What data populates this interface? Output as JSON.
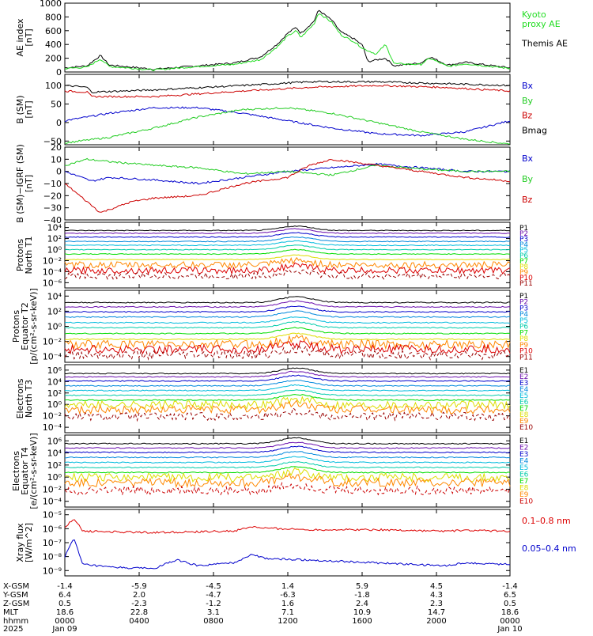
{
  "chart_data": [
    {
      "type": "line",
      "ylabel": "AE index\n[nT]",
      "yticks": [
        "1000",
        "800",
        "600",
        "400",
        "200",
        "0"
      ],
      "ylim": [
        0,
        1000
      ],
      "legend": [
        {
          "text": "Kyoto\nproxy AE",
          "color": "#22dd22"
        },
        {
          "text": "Themis AE",
          "color": "#000000"
        }
      ],
      "series": [
        {
          "name": "Themis AE",
          "color": "#000000",
          "keypoints": [
            [
              0,
              60
            ],
            [
              0.05,
              90
            ],
            [
              0.08,
              240
            ],
            [
              0.1,
              100
            ],
            [
              0.2,
              40
            ],
            [
              0.3,
              90
            ],
            [
              0.38,
              130
            ],
            [
              0.44,
              220
            ],
            [
              0.48,
              420
            ],
            [
              0.5,
              560
            ],
            [
              0.52,
              650
            ],
            [
              0.53,
              560
            ],
            [
              0.56,
              740
            ],
            [
              0.57,
              900
            ],
            [
              0.6,
              750
            ],
            [
              0.62,
              580
            ],
            [
              0.65,
              480
            ],
            [
              0.67,
              380
            ],
            [
              0.68,
              150
            ],
            [
              0.72,
              200
            ],
            [
              0.74,
              90
            ],
            [
              0.8,
              130
            ],
            [
              0.82,
              220
            ],
            [
              0.86,
              100
            ],
            [
              0.9,
              140
            ],
            [
              1.0,
              60
            ]
          ]
        },
        {
          "name": "Kyoto proxy AE",
          "color": "#22dd22",
          "keypoints": [
            [
              0,
              50
            ],
            [
              0.05,
              70
            ],
            [
              0.08,
              190
            ],
            [
              0.1,
              80
            ],
            [
              0.2,
              30
            ],
            [
              0.3,
              80
            ],
            [
              0.38,
              110
            ],
            [
              0.44,
              180
            ],
            [
              0.48,
              380
            ],
            [
              0.5,
              520
            ],
            [
              0.52,
              600
            ],
            [
              0.53,
              500
            ],
            [
              0.56,
              700
            ],
            [
              0.57,
              860
            ],
            [
              0.6,
              720
            ],
            [
              0.62,
              540
            ],
            [
              0.65,
              440
            ],
            [
              0.67,
              340
            ],
            [
              0.7,
              260
            ],
            [
              0.72,
              400
            ],
            [
              0.74,
              120
            ],
            [
              0.8,
              110
            ],
            [
              0.82,
              200
            ],
            [
              0.86,
              80
            ],
            [
              0.9,
              120
            ],
            [
              1.0,
              50
            ]
          ]
        }
      ]
    },
    {
      "type": "line",
      "ylabel": "B (SM)\n[nT]",
      "yticks": [
        "100",
        "50",
        "0",
        "−50"
      ],
      "ylim": [
        -60,
        130
      ],
      "legend": [
        {
          "text": "Bx",
          "color": "#0000cc"
        },
        {
          "text": "By",
          "color": "#22cc22"
        },
        {
          "text": "Bz",
          "color": "#cc0000"
        },
        {
          "text": "Bmag",
          "color": "#000000"
        }
      ],
      "series": [
        {
          "name": "Bx",
          "color": "#0000cc",
          "keypoints": [
            [
              0,
              5
            ],
            [
              0.1,
              25
            ],
            [
              0.2,
              40
            ],
            [
              0.3,
              40
            ],
            [
              0.4,
              25
            ],
            [
              0.5,
              5
            ],
            [
              0.6,
              -15
            ],
            [
              0.7,
              -30
            ],
            [
              0.8,
              -35
            ],
            [
              0.9,
              -25
            ],
            [
              1.0,
              5
            ]
          ]
        },
        {
          "name": "By",
          "color": "#22cc22",
          "keypoints": [
            [
              0,
              -55
            ],
            [
              0.1,
              -40
            ],
            [
              0.2,
              -15
            ],
            [
              0.3,
              15
            ],
            [
              0.4,
              35
            ],
            [
              0.5,
              40
            ],
            [
              0.6,
              25
            ],
            [
              0.7,
              0
            ],
            [
              0.8,
              -25
            ],
            [
              0.9,
              -45
            ],
            [
              1.0,
              -58
            ]
          ]
        },
        {
          "name": "Bz",
          "color": "#cc0000",
          "keypoints": [
            [
              0,
              85
            ],
            [
              0.05,
              82
            ],
            [
              0.06,
              70
            ],
            [
              0.2,
              70
            ],
            [
              0.4,
              85
            ],
            [
              0.55,
              95
            ],
            [
              0.7,
              100
            ],
            [
              0.85,
              95
            ],
            [
              1.0,
              85
            ]
          ]
        },
        {
          "name": "Bmag",
          "color": "#000000",
          "keypoints": [
            [
              0,
              100
            ],
            [
              0.05,
              95
            ],
            [
              0.06,
              82
            ],
            [
              0.2,
              88
            ],
            [
              0.4,
              100
            ],
            [
              0.55,
              110
            ],
            [
              0.7,
              110
            ],
            [
              0.85,
              105
            ],
            [
              1.0,
              100
            ]
          ]
        }
      ]
    },
    {
      "type": "line",
      "ylabel": "B (SM)−IGRF (SM)\n[nT]",
      "yticks": [
        "20",
        "10",
        "0",
        "−10",
        "−20",
        "−30",
        "−40"
      ],
      "ylim": [
        -40,
        20
      ],
      "legend": [
        {
          "text": "Bx",
          "color": "#0000cc"
        },
        {
          "text": "By",
          "color": "#22cc22"
        },
        {
          "text": "Bz",
          "color": "#cc0000"
        }
      ],
      "series": [
        {
          "name": "Bx",
          "color": "#0000cc",
          "keypoints": [
            [
              0,
              0
            ],
            [
              0.06,
              -8
            ],
            [
              0.1,
              -5
            ],
            [
              0.2,
              -7
            ],
            [
              0.3,
              -10
            ],
            [
              0.4,
              -5
            ],
            [
              0.5,
              0
            ],
            [
              0.6,
              3
            ],
            [
              0.7,
              6
            ],
            [
              0.8,
              3
            ],
            [
              0.9,
              0
            ],
            [
              1.0,
              0
            ]
          ]
        },
        {
          "name": "By",
          "color": "#22cc22",
          "keypoints": [
            [
              0,
              5
            ],
            [
              0.05,
              10
            ],
            [
              0.1,
              8
            ],
            [
              0.2,
              5
            ],
            [
              0.3,
              3
            ],
            [
              0.4,
              -2
            ],
            [
              0.5,
              0
            ],
            [
              0.6,
              -3
            ],
            [
              0.7,
              5
            ],
            [
              0.8,
              2
            ],
            [
              0.9,
              0
            ],
            [
              1.0,
              0
            ]
          ]
        },
        {
          "name": "Bz",
          "color": "#cc0000",
          "keypoints": [
            [
              0,
              -10
            ],
            [
              0.05,
              -25
            ],
            [
              0.08,
              -34
            ],
            [
              0.15,
              -25
            ],
            [
              0.2,
              -22
            ],
            [
              0.3,
              -20
            ],
            [
              0.4,
              -10
            ],
            [
              0.5,
              -5
            ],
            [
              0.55,
              5
            ],
            [
              0.6,
              10
            ],
            [
              0.7,
              5
            ],
            [
              0.8,
              0
            ],
            [
              0.9,
              -5
            ],
            [
              1.0,
              -8
            ]
          ]
        }
      ]
    },
    {
      "type": "line",
      "scale": "log",
      "ylabel": "Protons\nNorth T1",
      "yticks": [
        "10⁴",
        "10²",
        "10⁰",
        "10⁻²",
        "10⁻⁴",
        "10⁻⁶"
      ],
      "ylim_exp": [
        -7,
        5
      ],
      "channels": [
        {
          "name": "P1",
          "color": "#000000",
          "level": 3.5
        },
        {
          "name": "P2",
          "color": "#6a0dad",
          "level": 3.0
        },
        {
          "name": "P3",
          "color": "#0000cc",
          "level": 2.3
        },
        {
          "name": "P4",
          "color": "#0088dd",
          "level": 1.5
        },
        {
          "name": "P5",
          "color": "#00bbdd",
          "level": 0.8
        },
        {
          "name": "P6",
          "color": "#00ccaa",
          "level": 0.0
        },
        {
          "name": "P7",
          "color": "#00dd00",
          "level": -0.8
        },
        {
          "name": "P8",
          "color": "#dddd00",
          "level": -1.8
        },
        {
          "name": "P9",
          "color": "#ff8800",
          "level": -2.8
        },
        {
          "name": "P10",
          "color": "#dd0000",
          "level": -3.8
        },
        {
          "name": "P11",
          "color": "#990000",
          "level": -4.8
        }
      ]
    },
    {
      "type": "line",
      "scale": "log",
      "ylabel": "Protons\nEquator T2\n[p/(cm²-s-sr-keV)]",
      "yticks": [
        "10⁴",
        "10²",
        "10⁰",
        "10⁻²",
        "10⁻⁴"
      ],
      "ylim_exp": [
        -5,
        5
      ],
      "channels": [
        {
          "name": "P1",
          "color": "#000000",
          "level": 3.3
        },
        {
          "name": "P2",
          "color": "#6a0dad",
          "level": 2.7
        },
        {
          "name": "P3",
          "color": "#0000cc",
          "level": 2.0
        },
        {
          "name": "P4",
          "color": "#0088dd",
          "level": 1.3
        },
        {
          "name": "P5",
          "color": "#00bbdd",
          "level": 0.5
        },
        {
          "name": "P6",
          "color": "#00ccaa",
          "level": -0.2
        },
        {
          "name": "P7",
          "color": "#00dd00",
          "level": -1.0
        },
        {
          "name": "P8",
          "color": "#dddd00",
          "level": -1.8
        },
        {
          "name": "P9",
          "color": "#ff8800",
          "level": -2.5
        },
        {
          "name": "P10",
          "color": "#dd0000",
          "level": -3.2
        },
        {
          "name": "P11",
          "color": "#990000",
          "level": -4.0
        }
      ]
    },
    {
      "type": "line",
      "scale": "log",
      "ylabel": "Electrons\nNorth T3",
      "yticks": [
        "10⁶",
        "10⁴",
        "10²",
        "10⁰",
        "10⁻²",
        "10⁻⁴"
      ],
      "ylim_exp": [
        -4,
        6
      ],
      "channels": [
        {
          "name": "E1",
          "color": "#000000",
          "level": 4.7
        },
        {
          "name": "E2",
          "color": "#6a0dad",
          "level": 4.2
        },
        {
          "name": "E3",
          "color": "#0000cc",
          "level": 3.6
        },
        {
          "name": "E4",
          "color": "#0088dd",
          "level": 2.9
        },
        {
          "name": "E5",
          "color": "#00bbdd",
          "level": 2.2
        },
        {
          "name": "E6",
          "color": "#00ccaa",
          "level": 1.5
        },
        {
          "name": "E7",
          "color": "#00dd00",
          "level": 0.8
        },
        {
          "name": "E8",
          "color": "#dddd00",
          "level": 0.1
        },
        {
          "name": "E9",
          "color": "#ff8800",
          "level": -0.6
        },
        {
          "name": "E10",
          "color": "#990000",
          "level": -1.6
        }
      ]
    },
    {
      "type": "line",
      "scale": "log",
      "ylabel": "Electrons\nEquator T4\n[e/(cm²-s-sr-keV)]",
      "yticks": [
        "10⁶",
        "10⁴",
        "10²",
        "10⁰",
        "10⁻²",
        "10⁻⁴"
      ],
      "ylim_exp": [
        -4,
        6
      ],
      "channels": [
        {
          "name": "E1",
          "color": "#000000",
          "level": 4.8
        },
        {
          "name": "E2",
          "color": "#6a0dad",
          "level": 4.2
        },
        {
          "name": "E3",
          "color": "#0000cc",
          "level": 3.6
        },
        {
          "name": "E4",
          "color": "#0088dd",
          "level": 2.9
        },
        {
          "name": "E5",
          "color": "#00bbdd",
          "level": 2.2
        },
        {
          "name": "E6",
          "color": "#00ccaa",
          "level": 1.5
        },
        {
          "name": "E7",
          "color": "#00dd00",
          "level": 0.8
        },
        {
          "name": "E8",
          "color": "#dddd00",
          "level": 0.1
        },
        {
          "name": "E9",
          "color": "#ff8800",
          "level": -0.6
        },
        {
          "name": "E10",
          "color": "#cc0000",
          "level": -1.7
        }
      ]
    },
    {
      "type": "line",
      "scale": "log",
      "ylabel": "Xray flux\n[W/m^2]",
      "yticks": [
        "10⁻⁵",
        "10⁻⁶",
        "10⁻⁷",
        "10⁻⁸",
        "10⁻⁹"
      ],
      "ylim_exp": [
        -9.3,
        -4.7
      ],
      "legend": [
        {
          "text": "0.1–0.8 nm",
          "color": "#dd0000"
        },
        {
          "text": "0.05–0.4 nm",
          "color": "#0000cc"
        }
      ],
      "series": [
        {
          "name": "0.1–0.8 nm",
          "color": "#dd0000",
          "keypoints": [
            [
              0,
              -6.0
            ],
            [
              0.02,
              -5.3
            ],
            [
              0.04,
              -6.2
            ],
            [
              0.2,
              -6.3
            ],
            [
              0.38,
              -6.2
            ],
            [
              0.42,
              -5.9
            ],
            [
              0.45,
              -6.0
            ],
            [
              0.55,
              -6.1
            ],
            [
              0.7,
              -6.1
            ],
            [
              0.85,
              -6.2
            ],
            [
              0.9,
              -6.15
            ],
            [
              1.0,
              -6.2
            ]
          ]
        },
        {
          "name": "0.05–0.4 nm",
          "color": "#0000cc",
          "keypoints": [
            [
              0,
              -8.0
            ],
            [
              0.02,
              -6.7
            ],
            [
              0.04,
              -8.5
            ],
            [
              0.1,
              -8.7
            ],
            [
              0.2,
              -8.8
            ],
            [
              0.25,
              -8.2
            ],
            [
              0.3,
              -8.6
            ],
            [
              0.38,
              -8.4
            ],
            [
              0.42,
              -7.8
            ],
            [
              0.45,
              -8.1
            ],
            [
              0.55,
              -8.2
            ],
            [
              0.7,
              -8.4
            ],
            [
              0.85,
              -8.6
            ],
            [
              0.9,
              -8.4
            ],
            [
              1.0,
              -8.5
            ]
          ]
        }
      ]
    }
  ],
  "ephemeris": {
    "row_labels": [
      "X-GSM",
      "Y-GSM",
      "Z-GSM",
      "MLT",
      "hhmm",
      "2025"
    ],
    "columns": [
      [
        "-1.4",
        "6.4",
        "0.5",
        "18.6",
        "0000",
        "Jan 09"
      ],
      [
        "-5.9",
        "2.0",
        "-2.3",
        "22.8",
        "0400",
        ""
      ],
      [
        "-4.5",
        "-4.7",
        "-1.2",
        "3.1",
        "0800",
        ""
      ],
      [
        "1.4",
        "-6.3",
        "1.6",
        "7.1",
        "1200",
        ""
      ],
      [
        "5.9",
        "-1.8",
        "2.4",
        "10.9",
        "1600",
        ""
      ],
      [
        "4.5",
        "4.3",
        "2.3",
        "14.7",
        "2000",
        ""
      ],
      [
        "-1.4",
        "6.5",
        "0.5",
        "18.6",
        "0000",
        "Jan 10"
      ]
    ]
  }
}
